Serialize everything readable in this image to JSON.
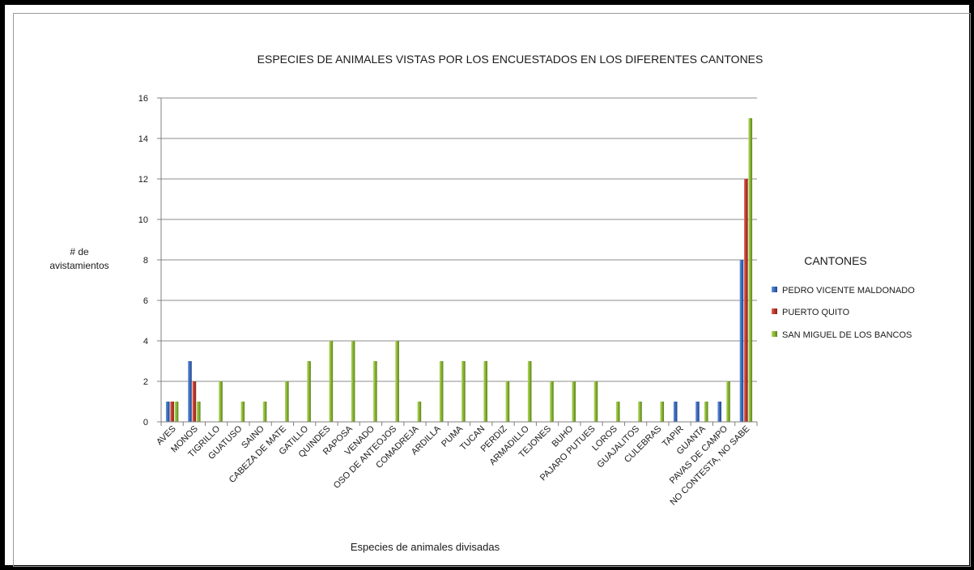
{
  "chart_data": {
    "type": "bar",
    "title": "ESPECIES DE ANIMALES VISTAS POR LOS ENCUESTADOS EN LOS DIFERENTES CANTONES",
    "xlabel": "Especies de animales divisadas",
    "ylabel_line1": "# de",
    "ylabel_line2": "avistamientos",
    "ylim": [
      0,
      16
    ],
    "yticks": [
      0,
      2,
      4,
      6,
      8,
      10,
      12,
      14,
      16
    ],
    "grid": true,
    "legend_title": "CANTONES",
    "legend_placement": "right",
    "categories": [
      "AVES",
      "MONOS",
      "TIGRILLO",
      "GUATUSO",
      "SAINO",
      "CABEZA DE MATE",
      "GATILLO",
      "QUINDES",
      "RAPOSA",
      "VENADO",
      "OSO DE ANTEOJOS",
      "COMADREJA",
      "ARDILLA",
      "PUMA",
      "TUCAN",
      "PERDIZ",
      "ARMADILLO",
      "TEJONES",
      "BUHO",
      "PAJARO PUTUES",
      "LOROS",
      "GUAJALITOS",
      "CULEBRAS",
      "TAPIR",
      "GUANTA",
      "PAVAS DE CAMPO",
      "NO CONTESTA, NO SABE"
    ],
    "series": [
      {
        "name": "PEDRO VICENTE  MALDONADO",
        "color": "#3a6cc0",
        "values": [
          1,
          3,
          0,
          0,
          0,
          0,
          0,
          0,
          0,
          0,
          0,
          0,
          0,
          0,
          0,
          0,
          0,
          0,
          0,
          0,
          0,
          0,
          0,
          1,
          1,
          1,
          8
        ]
      },
      {
        "name": "PUERTO QUITO",
        "color": "#c0392b",
        "values": [
          1,
          2,
          0,
          0,
          0,
          0,
          0,
          0,
          0,
          0,
          0,
          0,
          0,
          0,
          0,
          0,
          0,
          0,
          0,
          0,
          0,
          0,
          0,
          0,
          0,
          0,
          12
        ]
      },
      {
        "name": "SAN MIGUEL  DE LOS BANCOS",
        "color": "#8ab833",
        "values": [
          1,
          1,
          2,
          1,
          1,
          2,
          3,
          4,
          4,
          3,
          4,
          1,
          3,
          3,
          3,
          2,
          3,
          2,
          2,
          2,
          1,
          1,
          1,
          0,
          1,
          2,
          15
        ]
      }
    ]
  }
}
